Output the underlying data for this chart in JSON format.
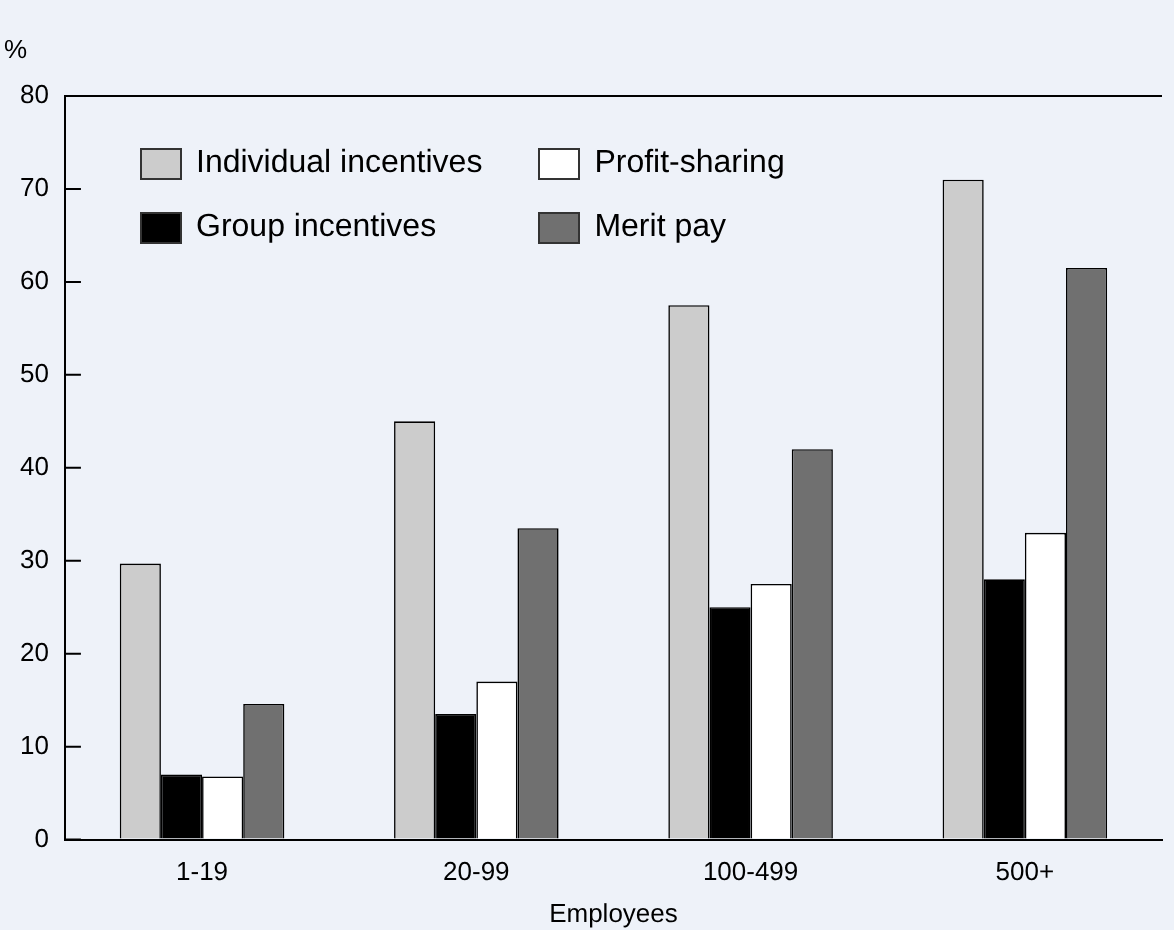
{
  "chart_data": {
    "type": "bar",
    "xlabel": "Employees",
    "ylabel": "%",
    "categories": [
      "1-19",
      "20-99",
      "100-499",
      "500+"
    ],
    "series": [
      {
        "name": "Individual incentives",
        "color": "#cccccc",
        "values": [
          29.7,
          45,
          57.5,
          71
        ]
      },
      {
        "name": "Group incentives",
        "color": "#000000",
        "values": [
          7,
          13.5,
          25,
          28
        ]
      },
      {
        "name": "Profit-sharing",
        "color": "#ffffff",
        "values": [
          6.8,
          17,
          27.5,
          33
        ]
      },
      {
        "name": "Merit pay",
        "color": "#707070",
        "values": [
          14.6,
          33.5,
          42,
          61.5
        ]
      }
    ],
    "ylim": [
      0,
      80
    ],
    "yticks": [
      0,
      10,
      20,
      30,
      40,
      50,
      60,
      70,
      80
    ],
    "grid": false,
    "legend": "top left"
  }
}
